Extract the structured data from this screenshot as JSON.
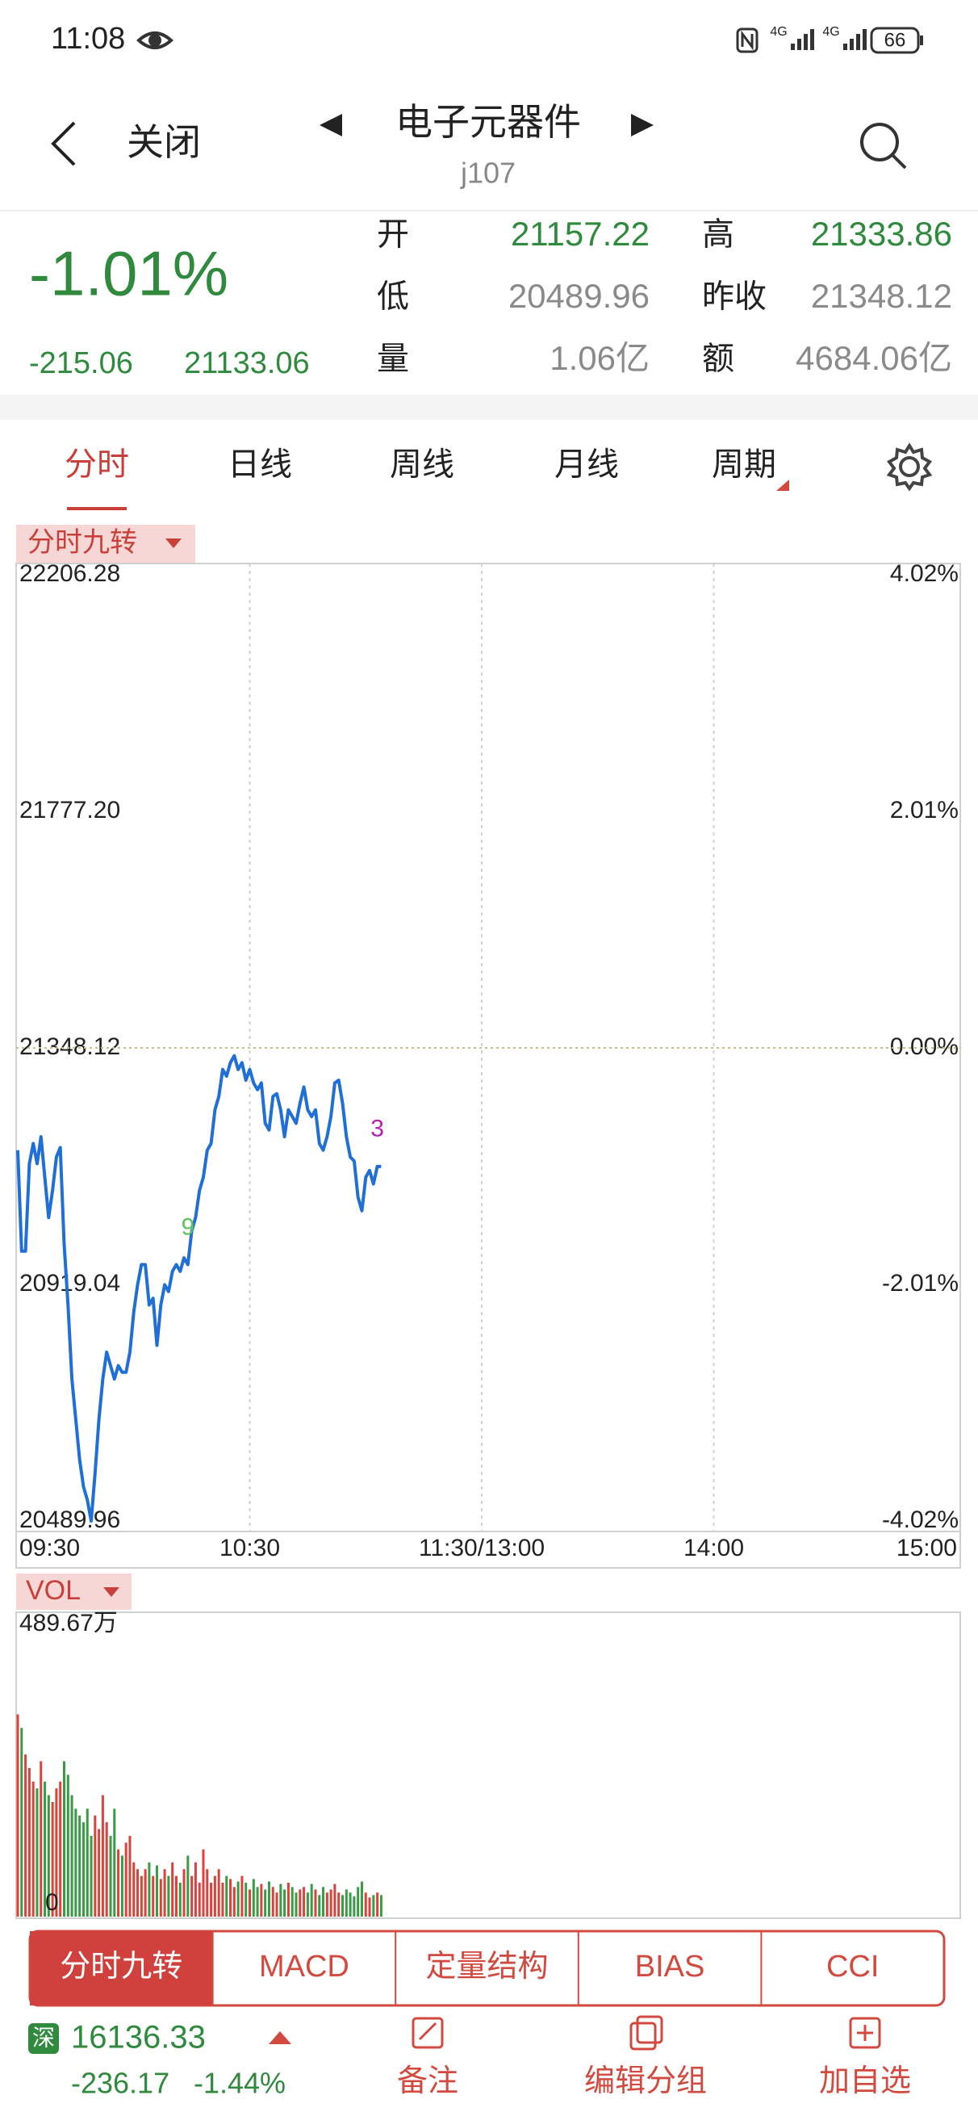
{
  "status_bar": {
    "time": "11:08",
    "networks": [
      "4G",
      "4G"
    ],
    "battery": "66"
  },
  "header": {
    "close": "关闭",
    "title": "电子元器件",
    "code": "j107"
  },
  "quote": {
    "change_pct": "-1.01%",
    "change": "-215.06",
    "price": "21133.06",
    "color": "#2f8a3e",
    "fields": [
      {
        "label": "开",
        "value": "21157.22",
        "color": "#2f8a3e"
      },
      {
        "label": "高",
        "value": "21333.86",
        "color": "#2f8a3e"
      },
      {
        "label": "低",
        "value": "20489.96",
        "color": "#8a8a8a"
      },
      {
        "label": "昨收",
        "value": "21348.12",
        "color": "#8a8a8a"
      },
      {
        "label": "量",
        "value": "1.06亿",
        "color": "#8a8a8a"
      },
      {
        "label": "额",
        "value": "4684.06亿",
        "color": "#8a8a8a"
      }
    ]
  },
  "tabs": [
    "分时",
    "日线",
    "周线",
    "月线",
    "周期"
  ],
  "chart_data": [
    {
      "type": "line",
      "label": "分时九转",
      "xlim": [
        0,
        240
      ],
      "xticks": [
        {
          "value": 0,
          "label": "09:30"
        },
        {
          "value": 60,
          "label": "10:30"
        },
        {
          "value": 120,
          "label": "11:30/13:00"
        },
        {
          "value": 180,
          "label": "14:00"
        },
        {
          "value": 240,
          "label": "15:00"
        }
      ],
      "ylim": [
        20489.96,
        22206.28
      ],
      "yticks": [
        20489.96,
        20919.04,
        21348.12,
        {
          "value": 21777.2,
          "label": "21777.20"
        },
        22206.28
      ],
      "y2lim": [
        -4.02,
        4.02
      ],
      "y2ticks": [
        {
          "value": -4.02,
          "label": "-4.02%"
        },
        {
          "value": -2.01,
          "label": "-2.01%"
        },
        {
          "value": 0,
          "label": "0.00%"
        },
        {
          "value": 2.01,
          "label": "2.01%"
        },
        {
          "value": 4.02,
          "label": "4.02%"
        }
      ],
      "grid_x": true,
      "series": [
        {
          "color": "#1f6fd6",
          "values": [
            21162.6,
            20979.4,
            20979.4,
            21138.1,
            21174.8,
            21138.1,
            21187.0,
            21113.7,
            21040.5,
            21089.3,
            21150.3,
            21167.4,
            20991.7,
            20881.8,
            20747.5,
            20674.3,
            20601.0,
            20552.2,
            20527.8,
            20489.96,
            20576.6,
            20674.3,
            20747.5,
            20796.3,
            20771.9,
            20747.5,
            20771.9,
            20759.7,
            20759.7,
            20796.3,
            20869.6,
            20918.4,
            20955.0,
            20955.0,
            20881.8,
            20894.0,
            20808.6,
            20881.8,
            20918.4,
            20906.2,
            20942.8,
            20955.0,
            20942.8,
            20967.2,
            20955.0,
            21016.1,
            21040.5,
            21089.3,
            21113.7,
            21162.6,
            21174.8,
            21235.8,
            21260.2,
            21309.0,
            21296.8,
            21321.2,
            21333.86,
            21309.0,
            21321.2,
            21289.5,
            21309.0,
            21284.6,
            21272.4,
            21284.6,
            21211.4,
            21199.2,
            21260.2,
            21265.1,
            21235.8,
            21187.0,
            21235.8,
            21223.6,
            21211.4,
            21248.0,
            21277.3,
            21235.8,
            21223.6,
            21235.8,
            21174.8,
            21162.6,
            21187.0,
            21223.6,
            21284.6,
            21289.5,
            21248.0,
            21187.0,
            21150.3,
            21143.0,
            21077.1,
            21052.7,
            21113.7,
            21125.9,
            21101.5,
            21133.3,
            21133.06
          ]
        }
      ],
      "annotations": [
        {
          "text": "9",
          "index": 44,
          "color": "#5cc25c"
        },
        {
          "text": "3",
          "index": 93,
          "color": "#b41fb4"
        }
      ]
    },
    {
      "type": "bar",
      "label": "VOL",
      "xlim": [
        0,
        240
      ],
      "ylim": [
        0,
        489.67
      ],
      "yticks": [
        0,
        {
          "value": 489.67,
          "label": "489.67万"
        }
      ],
      "up_color": "#d8433c",
      "down_color": "#3a9a46",
      "values": [
        328,
        306,
        263,
        241,
        219,
        208,
        252,
        219,
        197,
        186,
        208,
        219,
        252,
        230,
        197,
        175,
        164,
        153,
        175,
        131,
        164,
        142,
        197,
        153,
        131,
        175,
        109,
        99,
        120,
        131,
        88,
        77,
        66,
        77,
        88,
        66,
        83,
        61,
        77,
        66,
        88,
        66,
        55,
        77,
        99,
        66,
        88,
        55,
        109,
        77,
        55,
        66,
        77,
        55,
        66,
        61,
        48,
        57,
        66,
        55,
        44,
        61,
        48,
        53,
        44,
        57,
        48,
        39,
        53,
        44,
        55,
        48,
        39,
        44,
        48,
        39,
        53,
        44,
        35,
        48,
        39,
        44,
        53,
        39,
        35,
        44,
        39,
        33,
        48,
        57,
        39,
        31,
        35,
        39,
        35
      ]
    }
  ],
  "indicator_tabs": [
    "分时九转",
    "MACD",
    "定量结构",
    "BIAS",
    "CCI"
  ],
  "footer": {
    "market": "深",
    "index_value": "16136.33",
    "index_change": "-236.17",
    "index_pct": "-1.44%",
    "color": "#2f8a3e",
    "actions": [
      "备注",
      "编辑分组",
      "加自选"
    ]
  }
}
